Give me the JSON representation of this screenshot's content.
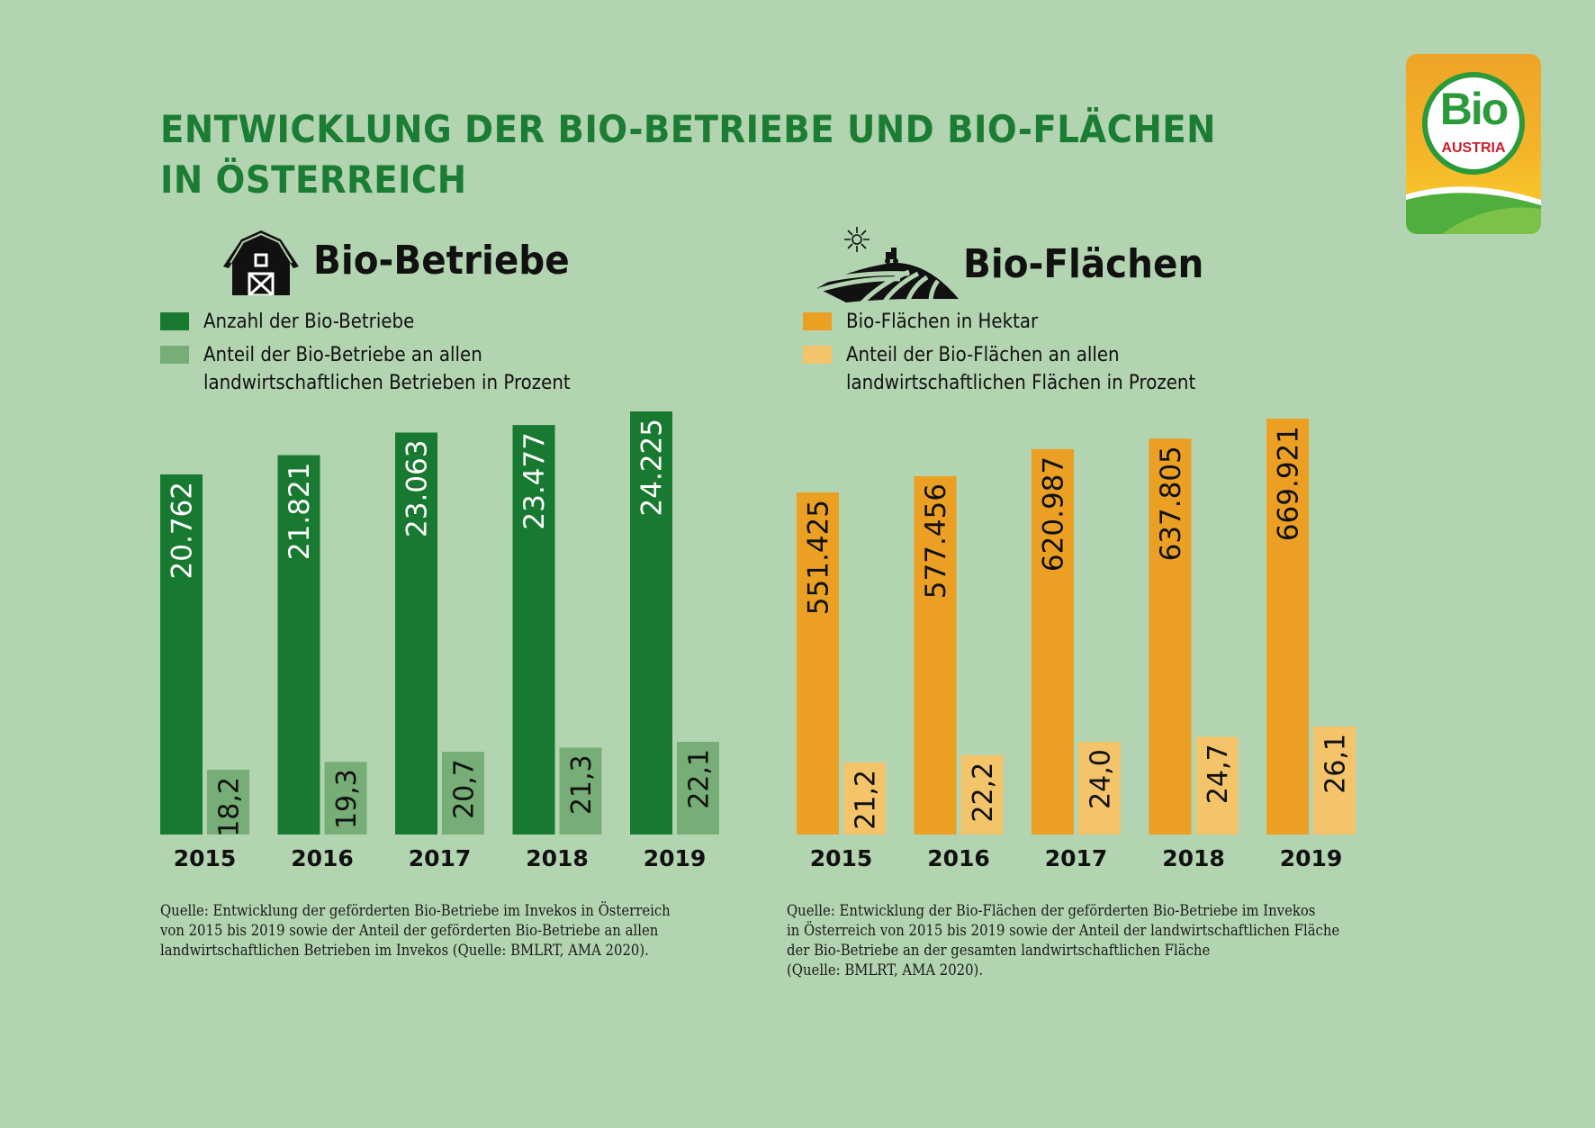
{
  "title_lines": [
    "ENTWICKLUNG DER BIO-BETRIEBE UND BIO-FLÄCHEN",
    "IN ÖSTERREICH"
  ],
  "logo": {
    "text_main": "Bio",
    "text_sub": "AUSTRIA",
    "icon": "bio-austria-logo"
  },
  "colors": {
    "background": "#b3d4b0",
    "title": "#1a7d33",
    "betriebe_count": "#187a30",
    "betriebe_share": "#77ad76",
    "flaechen_ha": "#eba024",
    "flaechen_share": "#f4c46a"
  },
  "left": {
    "heading": "Bio-Betriebe",
    "icon": "barn-icon",
    "legend": [
      {
        "label": "Anzahl der Bio-Betriebe",
        "color": "#187a30"
      },
      {
        "label": "Anteil der Bio-Betriebe an allen",
        "label2": "landwirtschaftlichen Betrieben in Prozent",
        "color": "#77ad76"
      }
    ],
    "source_lines": [
      "Quelle: Entwicklung der geförderten Bio-Betriebe im Invekos in Österreich",
      "von 2015 bis 2019 sowie der Anteil der geförderten Bio-Betriebe an allen",
      "landwirtschaftlichen Betrieben im Invekos (Quelle: BMLRT, AMA 2020)."
    ]
  },
  "right": {
    "heading": "Bio-Flächen",
    "icon": "farm-field-tractor-icon",
    "legend": [
      {
        "label": "Bio-Flächen in Hektar",
        "color": "#eba024"
      },
      {
        "label": "Anteil der Bio-Flächen an allen",
        "label2": "landwirtschaftlichen Flächen in Prozent",
        "color": "#f4c46a"
      }
    ],
    "source_lines": [
      "Quelle: Entwicklung der Bio-Flächen der geförderten Bio-Betriebe im Invekos",
      "in Österreich von 2015 bis 2019 sowie der Anteil der landwirtschaftlichen Fläche",
      "der Bio-Betriebe an der gesamten landwirtschaftlichen Fläche",
      "(Quelle: BMLRT, AMA 2020)."
    ]
  },
  "chart_data": [
    {
      "type": "bar",
      "title": "Bio-Betriebe",
      "categories": [
        "2015",
        "2016",
        "2017",
        "2018",
        "2019"
      ],
      "series": [
        {
          "name": "Anzahl der Bio-Betriebe",
          "values": [
            20762,
            21821,
            23063,
            23477,
            24225
          ],
          "labels": [
            "20.762",
            "21.821",
            "23.063",
            "23.477",
            "24.225"
          ],
          "color": "#187a30",
          "label_color": "#ffffff"
        },
        {
          "name": "Anteil der Bio-Betriebe an allen landwirtschaftlichen Betrieben in Prozent",
          "values": [
            18.2,
            19.3,
            20.7,
            21.3,
            22.1
          ],
          "labels": [
            "18,2",
            "19,3",
            "20,7",
            "21,3",
            "22,1"
          ],
          "color": "#77ad76",
          "label_color": "#111111"
        }
      ],
      "xlabel": "",
      "ylabel": "",
      "grid": false,
      "legend": "top-left",
      "value_labels": "rotated-vertical"
    },
    {
      "type": "bar",
      "title": "Bio-Flächen",
      "categories": [
        "2015",
        "2016",
        "2017",
        "2018",
        "2019"
      ],
      "series": [
        {
          "name": "Bio-Flächen in Hektar",
          "values": [
            551425,
            577456,
            620987,
            637805,
            669921
          ],
          "labels": [
            "551.425",
            "577.456",
            "620.987",
            "637.805",
            "669.921"
          ],
          "color": "#eba024",
          "label_color": "#111111"
        },
        {
          "name": "Anteil der Bio-Flächen an allen landwirtschaftlichen Flächen in Prozent",
          "values": [
            21.2,
            22.2,
            24.0,
            24.7,
            26.1
          ],
          "labels": [
            "21,2",
            "22,2",
            "24,0",
            "24,7",
            "26,1"
          ],
          "color": "#f4c46a",
          "label_color": "#111111"
        }
      ],
      "xlabel": "",
      "ylabel": "",
      "grid": false,
      "legend": "top-left",
      "value_labels": "rotated-vertical"
    }
  ]
}
